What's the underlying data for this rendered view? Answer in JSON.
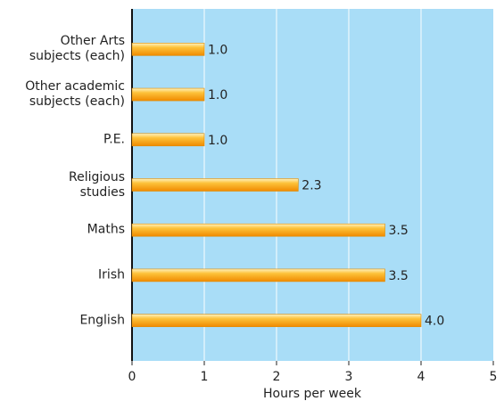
{
  "chart_data": {
    "type": "hbar",
    "categories": [
      "Other Arts\nsubjects (each)",
      "Other academic\nsubjects (each)",
      "P.E.",
      "Religious\nstudies",
      "Maths",
      "Irish",
      "English"
    ],
    "values": [
      1.0,
      1.0,
      1.0,
      2.3,
      3.5,
      3.5,
      4.0
    ],
    "value_labels": [
      "1.0",
      "1.0",
      "1.0",
      "2.3",
      "3.5",
      "3.5",
      "4.0"
    ],
    "x_label": "Hours per week",
    "xlim": [
      0,
      5
    ],
    "xticks": [
      0,
      1,
      2,
      3,
      4,
      5
    ],
    "grid": true,
    "color": "#fdb52a"
  }
}
